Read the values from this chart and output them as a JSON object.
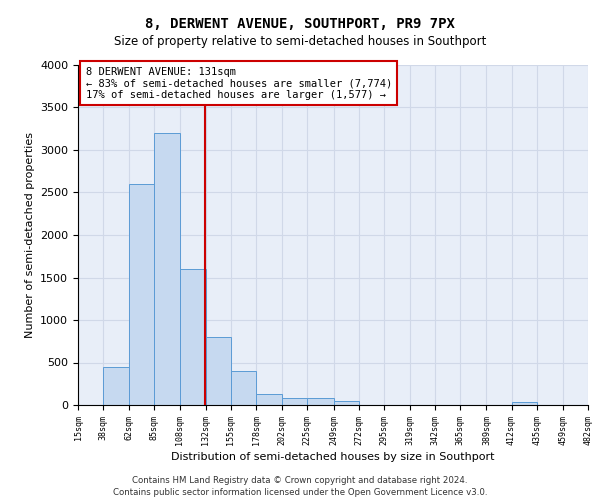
{
  "title1": "8, DERWENT AVENUE, SOUTHPORT, PR9 7PX",
  "title2": "Size of property relative to semi-detached houses in Southport",
  "xlabel": "Distribution of semi-detached houses by size in Southport",
  "ylabel": "Number of semi-detached properties",
  "footer1": "Contains HM Land Registry data © Crown copyright and database right 2024.",
  "footer2": "Contains public sector information licensed under the Open Government Licence v3.0.",
  "property_size": 131,
  "annotation_title": "8 DERWENT AVENUE: 131sqm",
  "annotation_line2": "← 83% of semi-detached houses are smaller (7,774)",
  "annotation_line3": "17% of semi-detached houses are larger (1,577) →",
  "bar_edges": [
    15,
    38,
    62,
    85,
    108,
    132,
    155,
    178,
    202,
    225,
    249,
    272,
    295,
    319,
    342,
    365,
    389,
    412,
    435,
    459,
    482
  ],
  "bar_heights": [
    0,
    450,
    2600,
    3200,
    1600,
    800,
    400,
    130,
    80,
    80,
    50,
    0,
    0,
    0,
    0,
    0,
    0,
    30,
    0,
    0
  ],
  "bar_color": "#c6d9f0",
  "bar_edge_color": "#5b9bd5",
  "red_line_x": 131,
  "ylim": [
    0,
    4000
  ],
  "yticks": [
    0,
    500,
    1000,
    1500,
    2000,
    2500,
    3000,
    3500,
    4000
  ],
  "annotation_box_edge": "#cc0000",
  "grid_color": "#d0d8e8",
  "bg_color": "#e8eef8"
}
